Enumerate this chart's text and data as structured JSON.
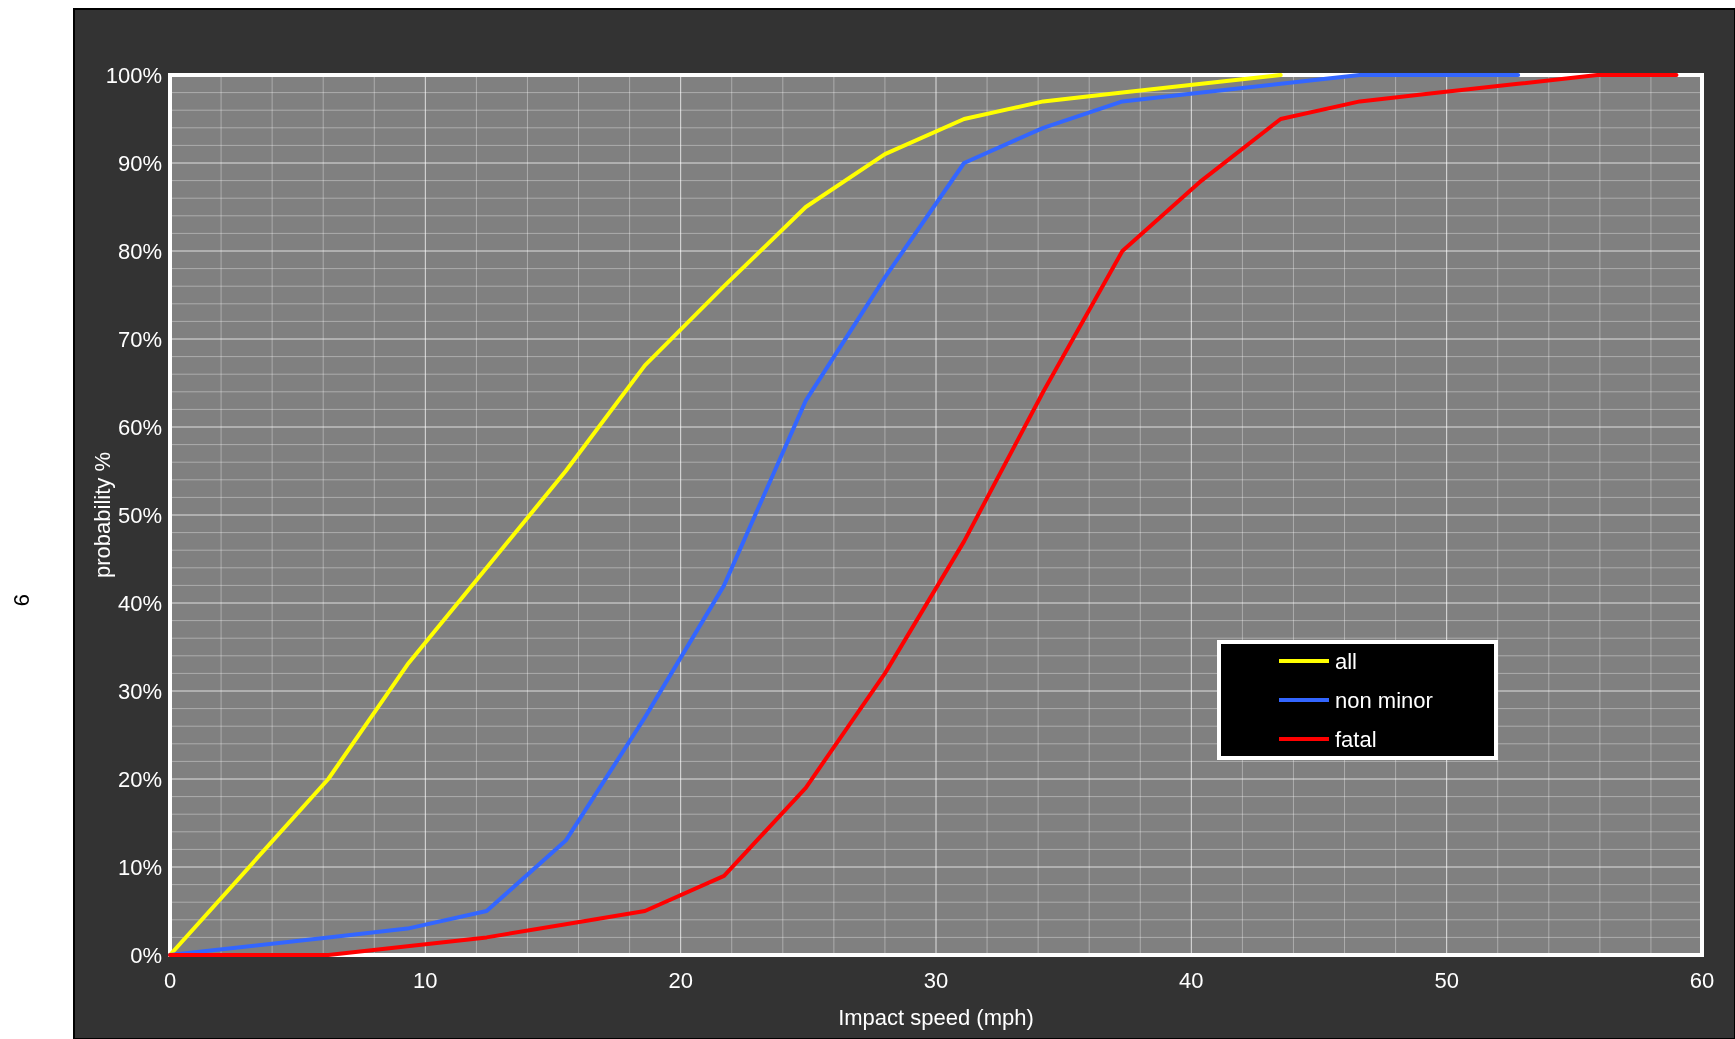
{
  "chart_data": {
    "type": "line",
    "xlabel": "Impact speed (mph)",
    "ylabel": "probability %",
    "annotations": [
      "9"
    ],
    "x": [
      0,
      6.2,
      9.3,
      12.4,
      15.5,
      18.6,
      21.7,
      24.9,
      28.0,
      31.1,
      34.2,
      37.3,
      40.4,
      43.5,
      46.6,
      49.7,
      52.8,
      55.9,
      59.0
    ],
    "series": [
      {
        "name": "all",
        "color": "#ffff00",
        "values": [
          0,
          20,
          33,
          44,
          55,
          67,
          76,
          85,
          91,
          95,
          97,
          98,
          99,
          100,
          null,
          null,
          null,
          null,
          null
        ]
      },
      {
        "name": "non minor",
        "color": "#3366ff",
        "values": [
          0,
          2,
          3,
          5,
          13,
          27,
          42,
          63,
          77,
          90,
          94,
          97,
          98,
          99,
          100,
          100,
          100,
          null,
          null
        ]
      },
      {
        "name": "fatal",
        "color": "#ff0000",
        "values": [
          0,
          0,
          1,
          2,
          3.5,
          5,
          9,
          19,
          32,
          47,
          64,
          80,
          88,
          95,
          97,
          98,
          99,
          100,
          100
        ]
      }
    ],
    "xlim": [
      0,
      60
    ],
    "xticks": [
      0,
      {
        "value": 2,
        "label": null
      },
      {
        "value": 4,
        "label": null
      },
      {
        "value": 6,
        "label": null
      },
      {
        "value": 8,
        "label": null
      },
      10,
      {
        "value": 12,
        "label": null
      },
      {
        "value": 14,
        "label": null
      },
      {
        "value": 16,
        "label": null
      },
      {
        "value": 18,
        "label": null
      },
      20,
      {
        "value": 22,
        "label": null
      },
      {
        "value": 24,
        "label": null
      },
      {
        "value": 26,
        "label": null
      },
      {
        "value": 28,
        "label": null
      },
      30,
      {
        "value": 32,
        "label": null
      },
      {
        "value": 34,
        "label": null
      },
      {
        "value": 36,
        "label": null
      },
      {
        "value": 38,
        "label": null
      },
      40,
      {
        "value": 42,
        "label": null
      },
      {
        "value": 44,
        "label": null
      },
      {
        "value": 46,
        "label": null
      },
      {
        "value": 48,
        "label": null
      },
      50,
      {
        "value": 52,
        "label": null
      },
      {
        "value": 54,
        "label": null
      },
      {
        "value": 56,
        "label": null
      },
      {
        "value": 58,
        "label": null
      },
      60
    ],
    "ylim": [
      0,
      100
    ],
    "yticks": [
      {
        "value": 0,
        "label": "0%"
      },
      {
        "value": 2,
        "label": null
      },
      {
        "value": 4,
        "label": null
      },
      {
        "value": 6,
        "label": null
      },
      {
        "value": 8,
        "label": null
      },
      {
        "value": 10,
        "label": "10%"
      },
      {
        "value": 12,
        "label": null
      },
      {
        "value": 14,
        "label": null
      },
      {
        "value": 16,
        "label": null
      },
      {
        "value": 18,
        "label": null
      },
      {
        "value": 20,
        "label": "20%"
      },
      {
        "value": 22,
        "label": null
      },
      {
        "value": 24,
        "label": null
      },
      {
        "value": 26,
        "label": null
      },
      {
        "value": 28,
        "label": null
      },
      {
        "value": 30,
        "label": "30%"
      },
      {
        "value": 32,
        "label": null
      },
      {
        "value": 34,
        "label": null
      },
      {
        "value": 36,
        "label": null
      },
      {
        "value": 38,
        "label": null
      },
      {
        "value": 40,
        "label": "40%"
      },
      {
        "value": 42,
        "label": null
      },
      {
        "value": 44,
        "label": null
      },
      {
        "value": 46,
        "label": null
      },
      {
        "value": 48,
        "label": null
      },
      {
        "value": 50,
        "label": "50%"
      },
      {
        "value": 52,
        "label": null
      },
      {
        "value": 54,
        "label": null
      },
      {
        "value": 56,
        "label": null
      },
      {
        "value": 58,
        "label": null
      },
      {
        "value": 60,
        "label": "60%"
      },
      {
        "value": 62,
        "label": null
      },
      {
        "value": 64,
        "label": null
      },
      {
        "value": 66,
        "label": null
      },
      {
        "value": 68,
        "label": null
      },
      {
        "value": 70,
        "label": "70%"
      },
      {
        "value": 72,
        "label": null
      },
      {
        "value": 74,
        "label": null
      },
      {
        "value": 76,
        "label": null
      },
      {
        "value": 78,
        "label": null
      },
      {
        "value": 80,
        "label": "80%"
      },
      {
        "value": 82,
        "label": null
      },
      {
        "value": 84,
        "label": null
      },
      {
        "value": 86,
        "label": null
      },
      {
        "value": 88,
        "label": null
      },
      {
        "value": 90,
        "label": "90%"
      },
      {
        "value": 92,
        "label": null
      },
      {
        "value": 94,
        "label": null
      },
      {
        "value": 96,
        "label": null
      },
      {
        "value": 98,
        "label": null
      },
      {
        "value": 100,
        "label": "100%"
      }
    ],
    "grid": true,
    "legend": "bottom right",
    "marker": "none",
    "line_style": "solid"
  }
}
